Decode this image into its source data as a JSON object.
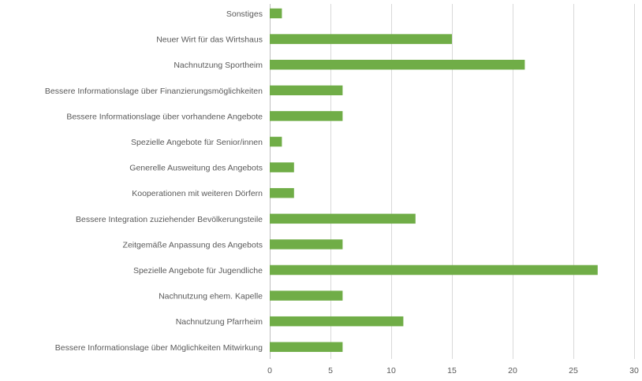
{
  "chart_data": {
    "type": "bar",
    "orientation": "horizontal",
    "categories": [
      "Sonstiges",
      "Neuer Wirt für das Wirtshaus",
      "Nachnutzung Sportheim",
      "Bessere Informationslage über Finanzierungsmöglichkeiten",
      "Bessere Informationslage über vorhandene Angebote",
      "Spezielle Angebote für Senior/innen",
      "Generelle Ausweitung des Angebots",
      "Kooperationen mit weiteren Dörfern",
      "Bessere Integration zuziehender Bevölkerungsteile",
      "Zeitgemäße Anpassung des Angebots",
      "Spezielle Angebote für Jugendliche",
      "Nachnutzung ehem. Kapelle",
      "Nachnutzung Pfarrheim",
      "Bessere Informationslage über Möglichkeiten Mitwirkung"
    ],
    "values": [
      1,
      15,
      21,
      6,
      6,
      1,
      2,
      2,
      12,
      6,
      27,
      6,
      11,
      6
    ],
    "xlim": [
      0,
      30
    ],
    "xticks": [
      0,
      5,
      10,
      15,
      20,
      25,
      30
    ],
    "grid": true,
    "bar_color": "#70ad47",
    "title": "",
    "xlabel": "",
    "ylabel": ""
  }
}
